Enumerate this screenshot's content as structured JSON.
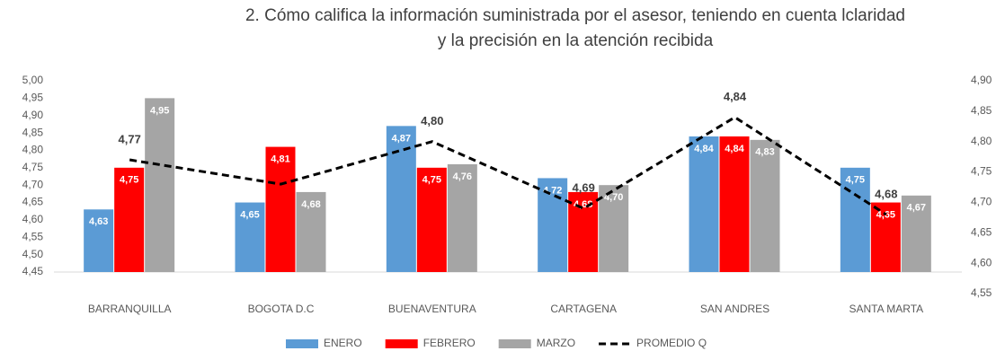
{
  "chart_data": {
    "type": "bar",
    "title": [
      "2. Cómo califica la información suministrada por el asesor,  teniendo en cuenta lclaridad",
      "y la precisión en la atención recibida"
    ],
    "categories": [
      "BARRANQUILLA",
      "BOGOTA D.C",
      "BUENAVENTURA",
      "CARTAGENA",
      "SAN ANDRES",
      "SANTA MARTA"
    ],
    "series": [
      {
        "name": "ENERO",
        "color": "#5b9bd5",
        "values": [
          4.63,
          4.65,
          4.87,
          4.72,
          4.84,
          4.75
        ],
        "value_labels": [
          "4,63",
          "4,65",
          "4,87",
          "4,72",
          "4,84",
          "4,75"
        ]
      },
      {
        "name": "FEBRERO",
        "color": "#ff0000",
        "values": [
          4.75,
          4.81,
          4.75,
          4.68,
          4.84,
          4.65
        ],
        "value_labels": [
          "4,75",
          "4,81",
          "4,75",
          "4,68",
          "4,84",
          "4,65"
        ]
      },
      {
        "name": "MARZO",
        "color": "#a5a5a5",
        "values": [
          4.95,
          4.68,
          4.76,
          4.7,
          4.83,
          4.67
        ],
        "value_labels": [
          "4,95",
          "4,68",
          "4,76",
          "4,70",
          "4,83",
          "4,67"
        ]
      },
      {
        "name": "PROMEDIO Q",
        "color": "#000000",
        "type": "line",
        "axis": "y2",
        "values": [
          4.77,
          4.73,
          4.8,
          4.69,
          4.84,
          4.68
        ],
        "value_labels": [
          "4,77",
          null,
          "4,80",
          "4,69",
          "4,84",
          "4,68"
        ]
      }
    ],
    "ylim": [
      4.45,
      5.0
    ],
    "yticks": [
      {
        "value": 4.45,
        "label": "4,45"
      },
      {
        "value": 4.5,
        "label": "4,50"
      },
      {
        "value": 4.55,
        "label": "4,55"
      },
      {
        "value": 4.6,
        "label": "4,60"
      },
      {
        "value": 4.65,
        "label": "4,65"
      },
      {
        "value": 4.7,
        "label": "4,70"
      },
      {
        "value": 4.75,
        "label": "4,75"
      },
      {
        "value": 4.8,
        "label": "4,80"
      },
      {
        "value": 4.85,
        "label": "4,85"
      },
      {
        "value": 4.9,
        "label": "4,90"
      },
      {
        "value": 4.95,
        "label": "4,95"
      },
      {
        "value": 5.0,
        "label": "5,00"
      }
    ],
    "y2lim": [
      4.55,
      4.9
    ],
    "y2ticks": [
      {
        "value": 4.55,
        "label": "4,55"
      },
      {
        "value": 4.6,
        "label": "4,60"
      },
      {
        "value": 4.65,
        "label": "4,65"
      },
      {
        "value": 4.7,
        "label": "4,70"
      },
      {
        "value": 4.75,
        "label": "4,75"
      },
      {
        "value": 4.8,
        "label": "4,80"
      },
      {
        "value": 4.85,
        "label": "4,85"
      },
      {
        "value": 4.9,
        "label": "4,90"
      }
    ],
    "grid": false,
    "legend": "bottom"
  }
}
